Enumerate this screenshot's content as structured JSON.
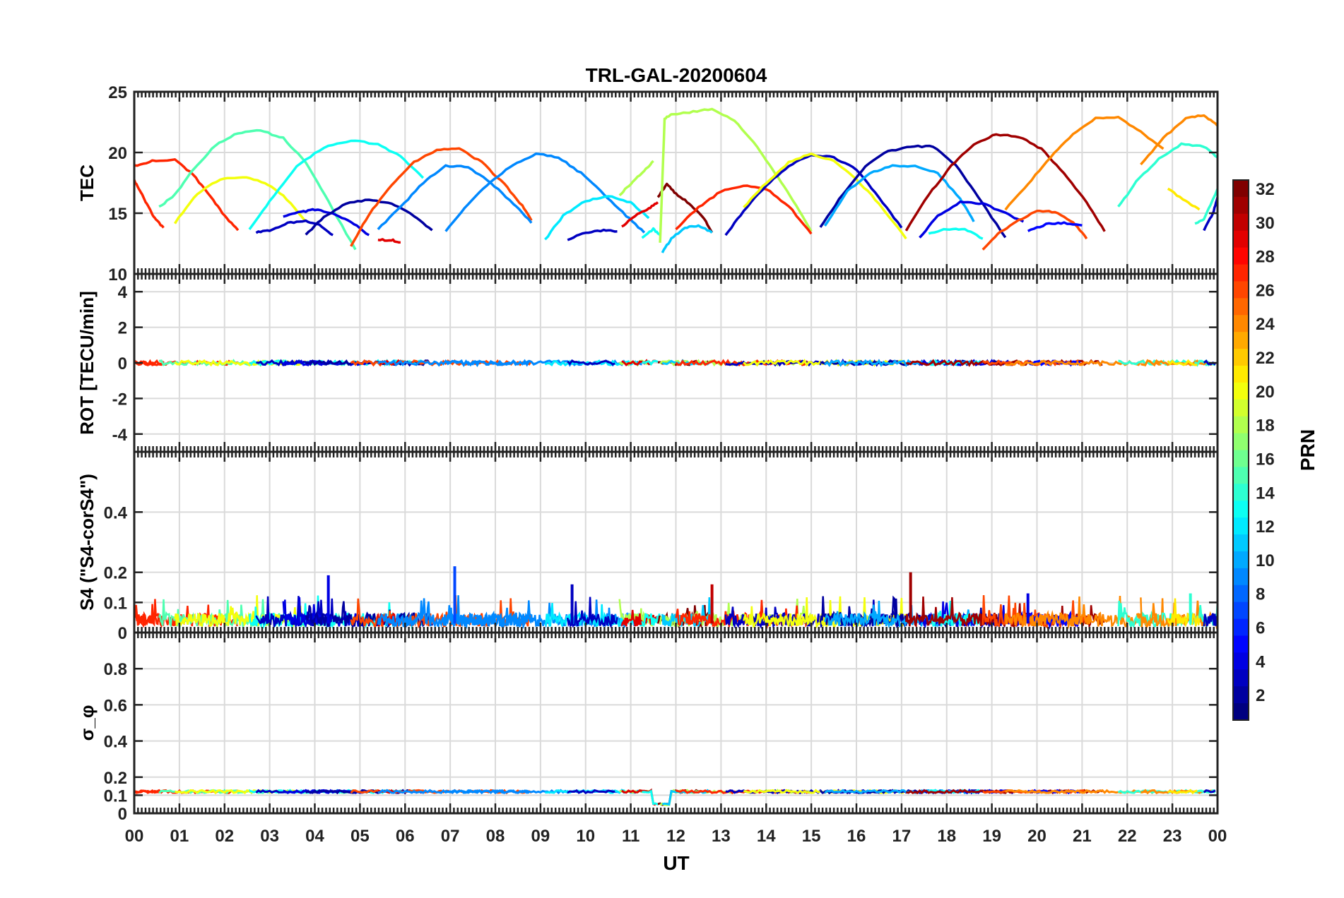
{
  "chart_data": {
    "type": "line",
    "title": "TRL-GAL-20200604",
    "x_axis": {
      "label": "UT",
      "range_hours": [
        0,
        24
      ],
      "tick_labels": [
        "00",
        "01",
        "02",
        "03",
        "04",
        "05",
        "06",
        "07",
        "08",
        "09",
        "10",
        "11",
        "12",
        "13",
        "14",
        "15",
        "16",
        "17",
        "18",
        "19",
        "20",
        "21",
        "22",
        "23",
        "00"
      ]
    },
    "grid": true,
    "colorbar": {
      "label": "PRN",
      "range": [
        1,
        32
      ],
      "colormap": "jet",
      "tick_labels": [
        "2",
        "4",
        "6",
        "8",
        "10",
        "12",
        "14",
        "16",
        "18",
        "20",
        "22",
        "24",
        "26",
        "28",
        "30",
        "32"
      ],
      "placement": "right"
    },
    "panels": [
      {
        "id": "tec",
        "ylabel": "TEC",
        "ylim": [
          10,
          25
        ],
        "ytick_labels": [
          "10",
          "15",
          "20",
          "25"
        ],
        "arcs": [
          {
            "prn": 27,
            "t": [
              0.0,
              0.15,
              0.3,
              0.45,
              0.65
            ],
            "v": [
              17.7,
              16.7,
              15.6,
              14.6,
              13.8
            ]
          },
          {
            "prn": 27,
            "t": [
              0.0,
              0.4,
              0.9,
              1.3,
              1.7,
              2.0,
              2.3
            ],
            "v": [
              18.9,
              19.3,
              19.4,
              18.2,
              16.3,
              14.8,
              13.6
            ]
          },
          {
            "prn": 15,
            "t": [
              0.55,
              0.9,
              1.3,
              1.8,
              2.3,
              2.8,
              3.3,
              3.8,
              4.3,
              4.9
            ],
            "v": [
              15.5,
              16.5,
              18.6,
              20.6,
              21.6,
              21.8,
              21.2,
              19.2,
              16.0,
              12.0
            ]
          },
          {
            "prn": 20,
            "t": [
              0.9,
              1.4,
              1.9,
              2.4,
              2.9,
              3.3,
              3.8
            ],
            "v": [
              14.2,
              16.6,
              17.8,
              18.0,
              17.5,
              16.5,
              14.3
            ]
          },
          {
            "prn": 13,
            "t": [
              2.55,
              3.0,
              3.6,
              4.2,
              4.8,
              5.4,
              5.9,
              6.4
            ],
            "v": [
              13.7,
              16.0,
              18.9,
              20.4,
              21.0,
              20.7,
              19.7,
              17.9
            ]
          },
          {
            "prn": 3,
            "t": [
              2.7,
              3.0,
              3.4,
              3.8,
              4.1,
              4.4
            ],
            "v": [
              13.4,
              13.6,
              14.2,
              14.4,
              14.0,
              13.2
            ]
          },
          {
            "prn": 4,
            "t": [
              3.3,
              3.7,
              4.0,
              4.4,
              4.8,
              5.2
            ],
            "v": [
              14.7,
              15.1,
              15.3,
              15.0,
              14.3,
              13.2
            ]
          },
          {
            "prn": 2,
            "t": [
              3.8,
              4.2,
              4.7,
              5.2,
              5.7,
              6.2,
              6.6
            ],
            "v": [
              13.2,
              14.7,
              15.8,
              16.1,
              15.8,
              14.8,
              13.6
            ]
          },
          {
            "prn": 26,
            "t": [
              4.8,
              5.2,
              5.7,
              6.2,
              6.7,
              7.2,
              7.7,
              8.2,
              8.6,
              8.8
            ],
            "v": [
              12.3,
              14.9,
              17.3,
              19.2,
              20.2,
              20.3,
              19.2,
              17.4,
              15.6,
              14.4
            ]
          },
          {
            "prn": 29,
            "t": [
              5.4,
              5.7,
              5.9
            ],
            "v": [
              12.8,
              12.8,
              12.6
            ]
          },
          {
            "prn": 9,
            "t": [
              5.4,
              5.9,
              6.4,
              6.9,
              7.4,
              7.9,
              8.4,
              8.8
            ],
            "v": [
              13.7,
              15.5,
              17.5,
              18.9,
              18.8,
              17.5,
              15.8,
              14.2
            ]
          },
          {
            "prn": 9,
            "t": [
              6.9,
              7.4,
              7.9,
              8.4,
              8.9,
              9.4,
              9.9,
              10.4,
              10.9,
              11.3
            ],
            "v": [
              13.5,
              15.8,
              17.6,
              19.0,
              19.9,
              19.6,
              18.3,
              16.6,
              14.8,
              13.4
            ]
          },
          {
            "prn": 12,
            "t": [
              9.1,
              9.5,
              10.0,
              10.5,
              11.0,
              11.4
            ],
            "v": [
              12.8,
              14.8,
              16.0,
              16.4,
              15.9,
              14.6
            ]
          },
          {
            "prn": 3,
            "t": [
              9.6,
              10.0,
              10.4,
              10.7
            ],
            "v": [
              12.8,
              13.4,
              13.6,
              13.5
            ]
          },
          {
            "prn": 18,
            "t": [
              10.75,
              11.0,
              11.3,
              11.5
            ],
            "v": [
              16.5,
              17.4,
              18.5,
              19.3
            ]
          },
          {
            "prn": 29,
            "t": [
              10.8,
              11.1,
              11.4,
              11.6
            ],
            "v": [
              13.9,
              14.8,
              15.4,
              15.9
            ]
          },
          {
            "prn": 13,
            "t": [
              11.25,
              11.5,
              11.65
            ],
            "v": [
              13.0,
              13.7,
              13.2
            ]
          },
          {
            "prn": 32,
            "t": [
              11.6,
              11.8,
              12.0,
              12.3,
              12.6,
              12.8
            ],
            "v": [
              16.3,
              17.4,
              16.6,
              15.8,
              14.7,
              13.4
            ]
          },
          {
            "prn": 18,
            "t": [
              11.65,
              11.75,
              11.9,
              12.3,
              12.8,
              13.3,
              13.8,
              14.2,
              14.6,
              15.0
            ],
            "v": [
              12.6,
              22.8,
              23.1,
              23.3,
              23.6,
              22.6,
              20.5,
              18.3,
              16.0,
              13.5
            ]
          },
          {
            "prn": 11,
            "t": [
              11.7,
              11.9,
              12.2,
              12.5,
              12.8
            ],
            "v": [
              11.8,
              12.9,
              13.8,
              14.0,
              13.4
            ]
          },
          {
            "prn": 27,
            "t": [
              12.0,
              12.5,
              13.0,
              13.5,
              14.0,
              14.5,
              15.0
            ],
            "v": [
              13.7,
              15.5,
              16.8,
              17.3,
              17.0,
              15.6,
              13.3
            ]
          },
          {
            "prn": 3,
            "t": [
              13.1,
              13.5,
              14.0,
              14.5,
              15.0,
              15.5,
              16.0,
              16.5,
              17.0
            ],
            "v": [
              13.2,
              15.2,
              17.3,
              18.9,
              19.8,
              19.6,
              18.6,
              16.3,
              13.8
            ]
          },
          {
            "prn": 20,
            "t": [
              13.5,
              14.0,
              14.5,
              15.0,
              15.5,
              16.0,
              16.5,
              17.1
            ],
            "v": [
              15.5,
              17.5,
              19.2,
              19.9,
              19.3,
              17.8,
              15.8,
              12.9
            ]
          },
          {
            "prn": 2,
            "t": [
              15.2,
              15.7,
              16.2,
              16.7,
              17.2,
              17.7,
              18.2,
              18.7,
              19.3
            ],
            "v": [
              13.8,
              16.6,
              18.9,
              20.1,
              20.5,
              20.5,
              19.0,
              16.3,
              13.0
            ]
          },
          {
            "prn": 10,
            "t": [
              15.3,
              15.8,
              16.3,
              16.8,
              17.3,
              17.8,
              18.3,
              18.6
            ],
            "v": [
              14.0,
              16.8,
              18.3,
              18.9,
              18.9,
              18.3,
              16.2,
              14.3
            ]
          },
          {
            "prn": 4,
            "t": [
              17.4,
              17.8,
              18.3,
              18.8,
              19.3,
              19.7
            ],
            "v": [
              13.0,
              14.8,
              15.9,
              15.8,
              15.0,
              14.3
            ]
          },
          {
            "prn": 13,
            "t": [
              17.6,
              18.0,
              18.4,
              18.8
            ],
            "v": [
              13.3,
              13.7,
              13.7,
              12.9
            ]
          },
          {
            "prn": 31,
            "t": [
              17.1,
              17.6,
              18.1,
              18.6,
              19.1,
              19.6,
              20.1,
              20.6,
              21.1,
              21.5
            ],
            "v": [
              13.6,
              16.5,
              18.9,
              20.7,
              21.5,
              21.3,
              20.3,
              18.3,
              15.9,
              13.5
            ]
          },
          {
            "prn": 26,
            "t": [
              18.8,
              19.2,
              19.6,
              20.0,
              20.4,
              20.8,
              21.1
            ],
            "v": [
              12.0,
              13.5,
              14.4,
              15.2,
              15.1,
              14.3,
              12.9
            ]
          },
          {
            "prn": 5,
            "t": [
              19.8,
              20.2,
              20.6,
              21.0
            ],
            "v": [
              13.5,
              14.1,
              14.2,
              14.0
            ]
          },
          {
            "prn": 24,
            "t": [
              19.3,
              19.8,
              20.3,
              20.8,
              21.3,
              21.8,
              22.3,
              22.8
            ],
            "v": [
              15.3,
              17.4,
              19.6,
              21.5,
              22.8,
              22.9,
              21.7,
              20.3
            ]
          },
          {
            "prn": 14,
            "t": [
              21.8,
              22.2,
              22.7,
              23.2,
              23.7,
              24.0
            ],
            "v": [
              15.5,
              17.6,
              19.5,
              20.7,
              20.5,
              19.6
            ]
          },
          {
            "prn": 24,
            "t": [
              22.3,
              22.8,
              23.3,
              23.7,
              24.0
            ],
            "v": [
              19.0,
              21.2,
              22.8,
              23.1,
              22.2
            ]
          },
          {
            "prn": 14,
            "t": [
              23.5,
              23.7,
              24.0
            ],
            "v": [
              14.1,
              14.5,
              17.0
            ]
          },
          {
            "prn": 3,
            "t": [
              23.7,
              23.9,
              24.0
            ],
            "v": [
              13.6,
              15.0,
              16.3
            ]
          },
          {
            "prn": 21,
            "t": [
              22.9,
              23.3,
              23.6
            ],
            "v": [
              17.0,
              16.0,
              15.3
            ]
          }
        ]
      },
      {
        "id": "rot",
        "ylabel": "ROT [TECU/min]",
        "ylim": [
          -5,
          5
        ],
        "ytick_labels": [
          "-4",
          "-2",
          "0",
          "2",
          "4"
        ],
        "baseline": 0
      },
      {
        "id": "s4",
        "ylabel": "S4 (\"S4-corS4\")",
        "ylim": [
          0,
          0.6
        ],
        "ytick_labels": [
          "0",
          "0.1",
          "0.2",
          "0.4"
        ],
        "typical_range": [
          0.02,
          0.1
        ],
        "peaks": [
          {
            "prn": 4,
            "t": 4.3,
            "v": 0.19
          },
          {
            "prn": 7,
            "t": 7.1,
            "v": 0.22
          },
          {
            "prn": 3,
            "t": 9.7,
            "v": 0.16
          },
          {
            "prn": 30,
            "t": 12.8,
            "v": 0.16
          },
          {
            "prn": 31,
            "t": 17.2,
            "v": 0.2
          },
          {
            "prn": 4,
            "t": 19.8,
            "v": 0.13
          },
          {
            "prn": 14,
            "t": 23.4,
            "v": 0.13
          }
        ]
      },
      {
        "id": "sigma",
        "ylabel": "σ_φ",
        "ylim": [
          0,
          1
        ],
        "ytick_labels": [
          "0",
          "0.1",
          "0.2",
          "0.4",
          "0.6",
          "0.8"
        ],
        "baseline": 0.12,
        "dip": {
          "t": [
            11.5,
            11.9
          ],
          "v": 0.05
        }
      }
    ]
  }
}
